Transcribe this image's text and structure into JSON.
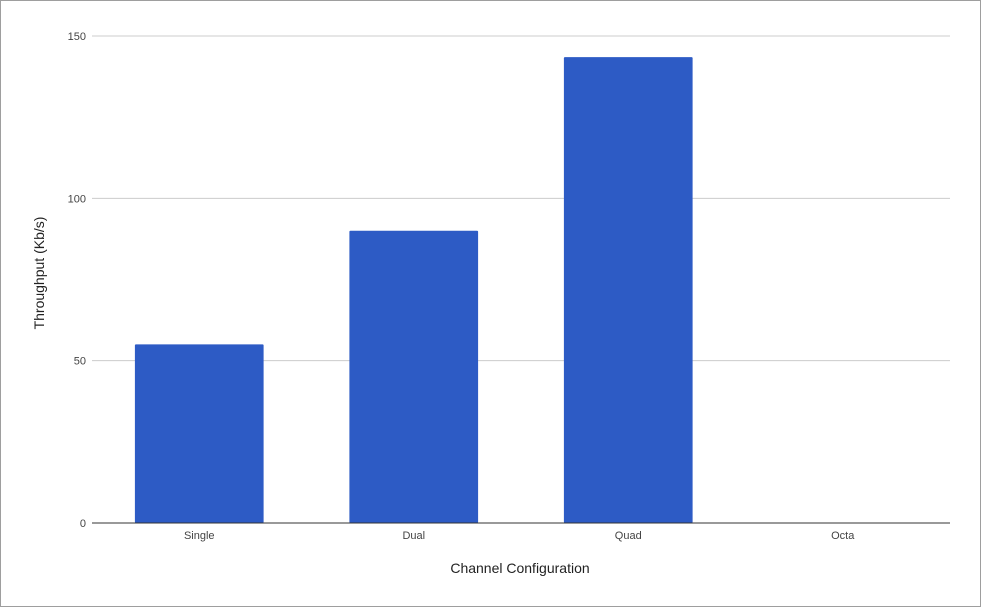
{
  "chart_data": {
    "type": "bar",
    "title": "",
    "xlabel": "Channel Configuration",
    "ylabel": "Throughput (Kb/s)",
    "categories": [
      "Single",
      "Dual",
      "Quad",
      "Octa"
    ],
    "series": [
      {
        "values": [
          55,
          90,
          143.5,
          null
        ]
      }
    ],
    "ylim": [
      0,
      150
    ],
    "yticks": [
      0,
      50,
      100,
      150
    ],
    "grid": true,
    "legend": "none",
    "bar_color": "#2d5bc5",
    "gridline_color": "#cccccc",
    "axis_color": "#333333"
  }
}
